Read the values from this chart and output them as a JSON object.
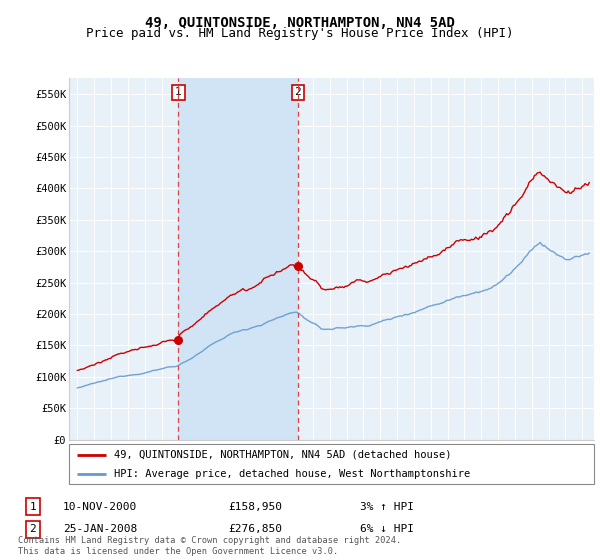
{
  "title": "49, QUINTONSIDE, NORTHAMPTON, NN4 5AD",
  "subtitle": "Price paid vs. HM Land Registry's House Price Index (HPI)",
  "ylim": [
    0,
    575000
  ],
  "yticks": [
    0,
    50000,
    100000,
    150000,
    200000,
    250000,
    300000,
    350000,
    400000,
    450000,
    500000,
    550000
  ],
  "ytick_labels": [
    "£0",
    "£50K",
    "£100K",
    "£150K",
    "£200K",
    "£250K",
    "£300K",
    "£350K",
    "£400K",
    "£450K",
    "£500K",
    "£550K"
  ],
  "background_color": "#ffffff",
  "plot_bg_color": "#e8f0f8",
  "plot_bg_shaded": "#d0e4f5",
  "grid_color": "#ffffff",
  "line1_color": "#cc0000",
  "line2_color": "#6699cc",
  "sale1_date": 2001.0,
  "sale1_price": 158950,
  "sale2_date": 2008.1,
  "sale2_price": 276850,
  "vline_color": "#dd4444",
  "legend_line1": "49, QUINTONSIDE, NORTHAMPTON, NN4 5AD (detached house)",
  "legend_line2": "HPI: Average price, detached house, West Northamptonshire",
  "annotation1": "10-NOV-2000",
  "annotation1_price": "£158,950",
  "annotation1_hpi": "3% ↑ HPI",
  "annotation2": "25-JAN-2008",
  "annotation2_price": "£276,850",
  "annotation2_hpi": "6% ↓ HPI",
  "footer": "Contains HM Land Registry data © Crown copyright and database right 2024.\nThis data is licensed under the Open Government Licence v3.0.",
  "title_fontsize": 10,
  "subtitle_fontsize": 9
}
